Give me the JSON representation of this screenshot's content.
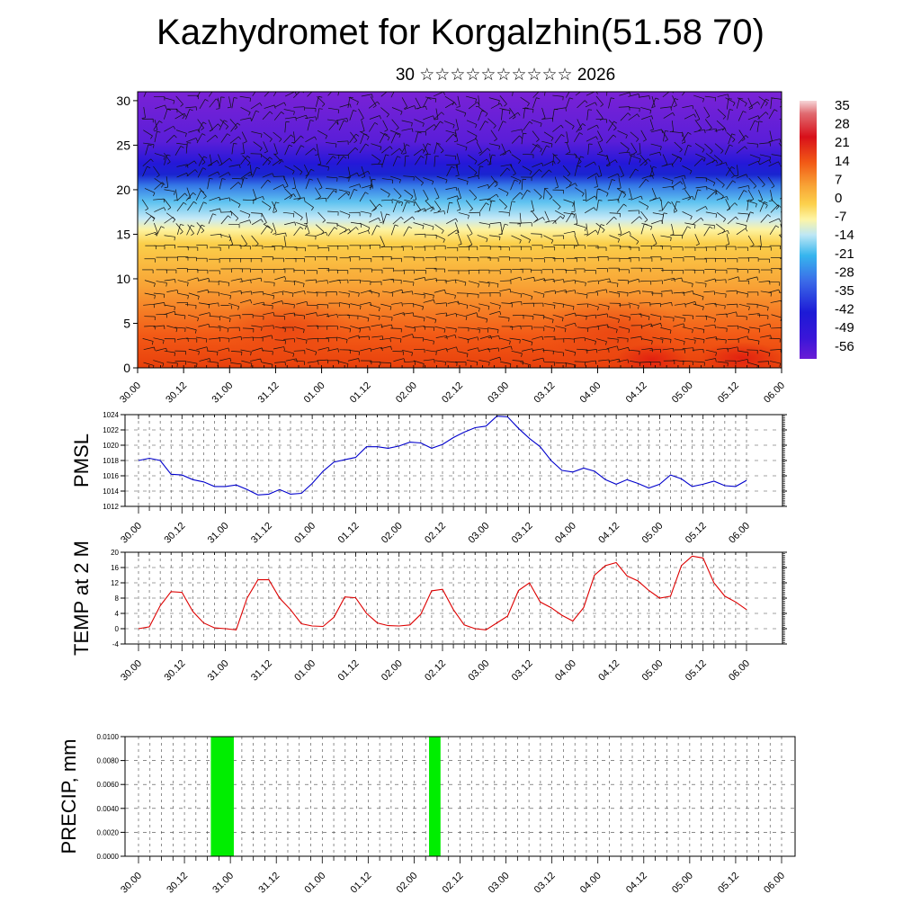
{
  "header": {
    "title": "Kazhydromet for Korgalzhin(51.58 70)",
    "subtitle": "30 ☆☆☆☆☆☆☆☆☆☆ 2026"
  },
  "time_labels": [
    "30.00",
    "30.12",
    "31.00",
    "31.12",
    "01.00",
    "01.12",
    "02.00",
    "02.12",
    "03.00",
    "03.12",
    "04.00",
    "04.12",
    "05.00",
    "05.12",
    "06.00"
  ],
  "colorbar": {
    "labels": [
      "35",
      "28",
      "21",
      "14",
      "7",
      "0",
      "-7",
      "-14",
      "-21",
      "-28",
      "-35",
      "-42",
      "-49",
      "-56"
    ],
    "colors": [
      "#f4c9cc",
      "#d8101a",
      "#f25a16",
      "#f8a436",
      "#fcd14c",
      "#fdf5a6",
      "#bde7f5",
      "#36b5ee",
      "#3b6ae8",
      "#1d1ad6",
      "#6a1cd6"
    ]
  },
  "chart_data": [
    {
      "type": "heatmap",
      "title": "",
      "xlabel": "",
      "ylabel": "",
      "ylim": [
        0,
        31
      ],
      "yticks": [
        0,
        5,
        10,
        15,
        20,
        25,
        30
      ],
      "x_ticks": [
        "30.00",
        "30.12",
        "31.00",
        "31.12",
        "01.00",
        "01.12",
        "02.00",
        "02.12",
        "03.00",
        "03.12",
        "04.00",
        "04.12",
        "05.00",
        "05.12",
        "06.00"
      ],
      "levels": [
        0,
        5,
        10,
        15,
        20,
        25,
        30
      ],
      "temperature_by_level": [
        12,
        10,
        6,
        -2,
        -30,
        -55,
        -60
      ],
      "overlay": "wind barbs",
      "legend_position": "right"
    },
    {
      "type": "line",
      "ylabel": "PMSL",
      "ylim": [
        1012,
        1024
      ],
      "yticks": [
        1012,
        1014,
        1016,
        1018,
        1020,
        1022,
        1024
      ],
      "color": "#0000cc",
      "x_ticks": [
        "30.00",
        "30.12",
        "31.00",
        "31.12",
        "01.00",
        "01.12",
        "02.00",
        "02.12",
        "03.00",
        "03.12",
        "04.00",
        "04.12",
        "05.00",
        "05.12",
        "06.00"
      ],
      "values": [
        1018.0,
        1018.3,
        1018.0,
        1016.2,
        1016.1,
        1015.5,
        1015.2,
        1014.6,
        1014.6,
        1014.8,
        1014.2,
        1013.5,
        1013.6,
        1014.2,
        1013.6,
        1013.7,
        1015.0,
        1016.6,
        1017.8,
        1018.1,
        1018.4,
        1019.8,
        1019.8,
        1019.6,
        1019.9,
        1020.4,
        1020.3,
        1019.6,
        1020.1,
        1021.0,
        1021.7,
        1022.3,
        1022.5,
        1023.8,
        1023.7,
        1022.2,
        1020.9,
        1019.8,
        1018.0,
        1016.7,
        1016.5,
        1017.0,
        1016.6,
        1015.5,
        1014.9,
        1015.5,
        1015.0,
        1014.4,
        1014.9,
        1016.1,
        1015.6,
        1014.6,
        1014.9,
        1015.3,
        1014.7,
        1014.6,
        1015.4
      ]
    },
    {
      "type": "line",
      "ylabel": "TEMP at 2 M",
      "ylim": [
        -4,
        20
      ],
      "yticks": [
        -4,
        0,
        4,
        8,
        12,
        16,
        20
      ],
      "color": "#dd0000",
      "x_ticks": [
        "30.00",
        "30.12",
        "31.00",
        "31.12",
        "01.00",
        "01.12",
        "02.00",
        "02.12",
        "03.00",
        "03.12",
        "04.00",
        "04.12",
        "05.00",
        "05.12",
        "06.00"
      ],
      "values": [
        0.0,
        0.5,
        6.0,
        9.7,
        9.5,
        4.5,
        1.5,
        0.2,
        0.0,
        -0.3,
        8.0,
        12.8,
        12.8,
        8.0,
        5.0,
        1.3,
        0.7,
        0.6,
        3.0,
        8.3,
        8.1,
        4.0,
        1.5,
        0.8,
        0.7,
        1.0,
        3.8,
        9.9,
        10.3,
        5.0,
        1.0,
        0.0,
        -0.3,
        1.5,
        3.3,
        10.0,
        12.0,
        7.0,
        5.5,
        3.5,
        2.0,
        5.5,
        14.0,
        16.5,
        17.3,
        13.8,
        12.5,
        10.0,
        8.0,
        8.5,
        16.5,
        19.0,
        18.5,
        12.0,
        8.5,
        7.0,
        5.0
      ]
    },
    {
      "type": "bar",
      "ylabel": "PRECIP, mm",
      "ylim": [
        0,
        0.01
      ],
      "yticks": [
        "0.0000",
        "0.0020",
        "0.0040",
        "0.0060",
        "0.0080",
        "0.0100"
      ],
      "color": "#00ee00",
      "x_ticks": [
        "30.00",
        "30.12",
        "31.00",
        "31.12",
        "01.00",
        "01.12",
        "02.00",
        "02.12",
        "03.00",
        "03.12",
        "04.00",
        "04.12",
        "05.00",
        "05.12",
        "06.00"
      ],
      "bars": [
        {
          "x_start_step": 6.3,
          "x_end_step": 8.3,
          "value": 0.01
        },
        {
          "x_start_step": 25.3,
          "x_end_step": 26.3,
          "value": 0.01
        }
      ]
    }
  ]
}
